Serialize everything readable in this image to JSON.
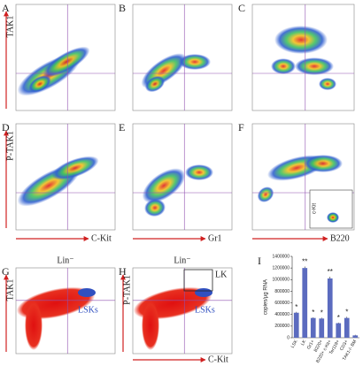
{
  "panels": [
    {
      "letter": "A",
      "y_label": "TAK1"
    },
    {
      "letter": "B"
    },
    {
      "letter": "C"
    },
    {
      "letter": "D",
      "y_label": "P-TAK1",
      "x_label": "C-Kit"
    },
    {
      "letter": "E",
      "x_label": "Gr1"
    },
    {
      "letter": "F",
      "x_label": "B220",
      "inset_label": "c-Kit"
    },
    {
      "letter": "G",
      "title": "Lin⁻",
      "y_label": "TAK1",
      "gate_label": "LSKs"
    },
    {
      "letter": "H",
      "title": "Lin⁻",
      "y_label": "P-TAK1",
      "x_label": "C-Kit",
      "gate_label": "LSKs",
      "box_label": "LK"
    }
  ],
  "chart_data": {
    "type": "bar",
    "letter": "I",
    "y_label": "copies/µg RNA",
    "categories": [
      "LSK",
      "LK",
      "Gr1+",
      "B220+",
      "B220+ c-Kit+",
      "Ter119+",
      "CD3+",
      "TAK1-/- BM"
    ],
    "values": [
      430000,
      1200000,
      340000,
      330000,
      1020000,
      250000,
      340000,
      40000
    ],
    "errors": [
      15000,
      25000,
      10000,
      15000,
      30000,
      10000,
      20000,
      10000
    ],
    "annotations": [
      "*",
      "**",
      "*",
      "*",
      "**",
      "*",
      "*",
      null
    ],
    "color": "#5b6bbf",
    "ylim": [
      0,
      1400000
    ],
    "yticks": [
      0,
      200000,
      400000,
      600000,
      800000,
      1000000,
      1200000,
      1400000
    ]
  }
}
